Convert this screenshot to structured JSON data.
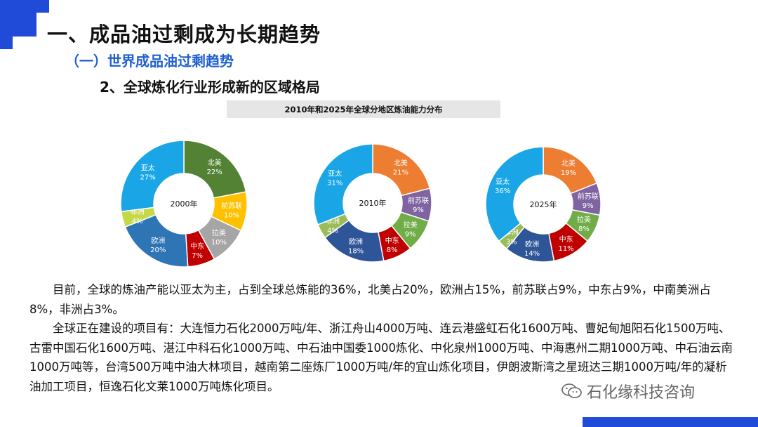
{
  "header": {
    "title": "一、成品油过剩成为长期趋势",
    "subtitle1": "（一）世界成品油过剩趋势",
    "subtitle2": "2、全球炼化行业形成新的区域格局"
  },
  "chart_title": "2010年和2025年全球分地区炼油能力分布",
  "chart_data": [
    {
      "type": "pie",
      "center_label": "2000年",
      "slices": [
        {
          "name": "北美",
          "value": 22,
          "label": "22%",
          "color": "#548235"
        },
        {
          "name": "前苏联",
          "value": 10,
          "label": "10%",
          "color": "#ffc000"
        },
        {
          "name": "拉美",
          "value": 10,
          "label": "10%",
          "color": "#a5a5a5"
        },
        {
          "name": "中东",
          "value": 7,
          "label": "7%",
          "color": "#c00000"
        },
        {
          "name": "欧洲",
          "value": 20,
          "label": "20%",
          "color": "#2e75b6"
        },
        {
          "name": "非洲",
          "value": 4,
          "label": "4%",
          "color": "#c5d84a"
        },
        {
          "name": "亚太",
          "value": 27,
          "label": "27%",
          "color": "#1aa6e6"
        }
      ]
    },
    {
      "type": "pie",
      "center_label": "2010年",
      "slices": [
        {
          "name": "北美",
          "value": 21,
          "label": "21%",
          "color": "#ed7d31"
        },
        {
          "name": "前苏联",
          "value": 9,
          "label": "9%",
          "color": "#8064a2"
        },
        {
          "name": "拉美",
          "value": 9,
          "label": "9%",
          "color": "#70ad47"
        },
        {
          "name": "中东",
          "value": 8,
          "label": "8%",
          "color": "#c00000"
        },
        {
          "name": "欧洲",
          "value": 18,
          "label": "18%",
          "color": "#2e5597"
        },
        {
          "name": "非洲",
          "value": 4,
          "label": "4%",
          "color": "#9bbb59"
        },
        {
          "name": "亚太",
          "value": 31,
          "label": "31%",
          "color": "#1aa6e6"
        }
      ]
    },
    {
      "type": "pie",
      "center_label": "2025年",
      "slices": [
        {
          "name": "北美",
          "value": 19,
          "label": "19%",
          "color": "#ed7d31"
        },
        {
          "name": "前苏联",
          "value": 9,
          "label": "9%",
          "color": "#8064a2"
        },
        {
          "name": "拉美",
          "value": 8,
          "label": "8%",
          "color": "#70ad47"
        },
        {
          "name": "中东",
          "value": 11,
          "label": "11%",
          "color": "#c00000"
        },
        {
          "name": "欧洲",
          "value": 14,
          "label": "14%",
          "color": "#2e5597"
        },
        {
          "name": "非洲",
          "value": 3,
          "label": "3%",
          "color": "#9bbb59"
        },
        {
          "name": "亚太",
          "value": 36,
          "label": "36%",
          "color": "#1aa6e6"
        }
      ]
    }
  ],
  "body": {
    "para1": "目前，全球的炼油产能以亚太为主，占到全球总炼能的36%，北美占20%，欧洲占15%，前苏联占9%，中东占9%，中南美洲占8%，非洲占3%。",
    "para2": "全球正在建设的项目有：大连恒力石化2000万吨/年、浙江舟山4000万吨、连云港盛虹石化1600万吨、曹妃甸旭阳石化1500万吨、古雷中国石化1600万吨、湛江中科石化1000万吨、中石油中国委1000炼化、中化泉州1000万吨、中海惠州二期1000万吨、中石油云南1000万吨等，台湾500万吨中油大林项目，越南第二座炼厂1000万吨/年的宜山炼化项目，伊朗波斯湾之星班达三期1000万吨/年的凝析油加工项目，恒逸石化文莱1000万吨炼化项目。"
  },
  "watermark": {
    "text": "石化缘科技咨询",
    "icon": "wechat-icon"
  },
  "colors": {
    "accent": "#1f4bd8",
    "subtitle": "#1f5fd0"
  }
}
